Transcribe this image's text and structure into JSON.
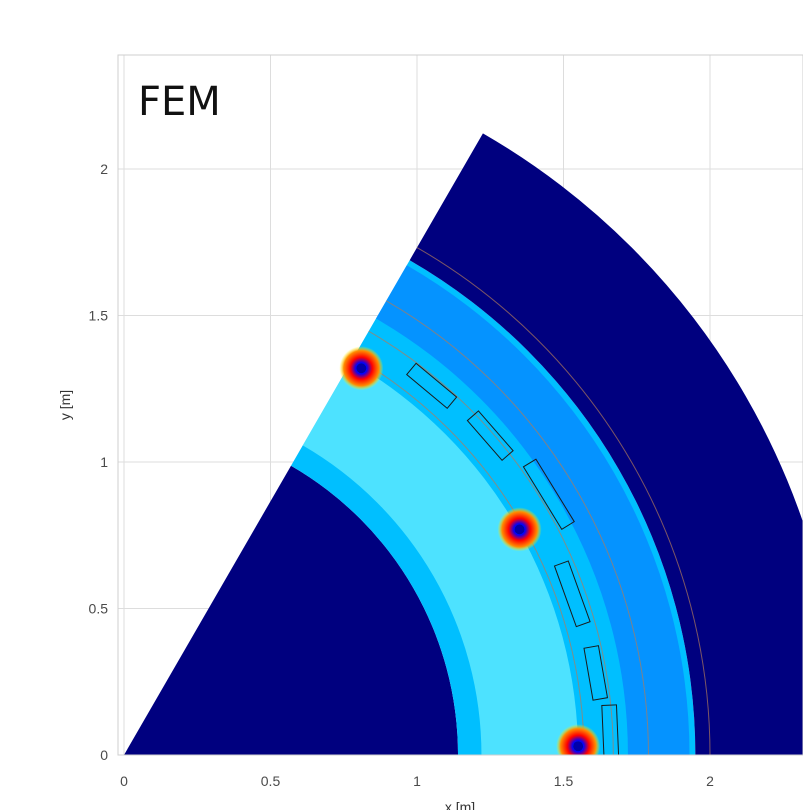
{
  "chart_data": {
    "type": "heatmap",
    "title": "FEM",
    "xlabel": "x [m]",
    "ylabel": "y [m]",
    "xlim": [
      0,
      2.35
    ],
    "ylim": [
      0,
      2.3
    ],
    "xticks": [
      0,
      0.5,
      1,
      1.5,
      2
    ],
    "xtick_labels": [
      "0",
      "0.5",
      "1",
      "1.5",
      "2"
    ],
    "yticks": [
      0,
      0.5,
      1,
      1.5,
      2
    ],
    "ytick_labels": [
      "0",
      "0.5",
      "1",
      "1.5",
      "2"
    ],
    "grid": true,
    "colormap": "jet",
    "sector_angle_deg": 60,
    "regions": [
      {
        "name": "inner",
        "r_inner": 0,
        "r_outer": 1.14,
        "level": "low"
      },
      {
        "name": "middle",
        "r_inner": 1.14,
        "r_outer": 1.95,
        "level": "medium"
      },
      {
        "name": "outer",
        "r_inner": 1.95,
        "r_outer": 2.45,
        "level": "low"
      }
    ],
    "boundary_arcs_r": [
      1.57,
      1.67,
      1.79,
      2.0
    ],
    "hotspots": [
      {
        "x": 0.81,
        "y": 1.32
      },
      {
        "x": 1.35,
        "y": 0.77
      },
      {
        "x": 1.55,
        "y": 0.03
      }
    ],
    "rectangles": [
      {
        "x": 1.05,
        "y": 1.26,
        "w": 0.18,
        "h": 0.05
      },
      {
        "x": 1.25,
        "y": 1.09,
        "w": 0.18,
        "h": 0.05
      },
      {
        "x": 1.45,
        "y": 0.89,
        "w": 0.25,
        "h": 0.05
      },
      {
        "x": 1.53,
        "y": 0.55,
        "w": 0.22,
        "h": 0.05
      },
      {
        "x": 1.61,
        "y": 0.28,
        "w": 0.18,
        "h": 0.05
      },
      {
        "x": 1.66,
        "y": 0.07,
        "w": 0.2,
        "h": 0.05
      }
    ],
    "colors": {
      "low": "#00007f",
      "mid": "#00bfff",
      "high": "#8cffff",
      "hot": "#ff0000",
      "hot2": "#ffb000",
      "frame": "#cfcfcf",
      "grid": "#dddddd"
    }
  }
}
